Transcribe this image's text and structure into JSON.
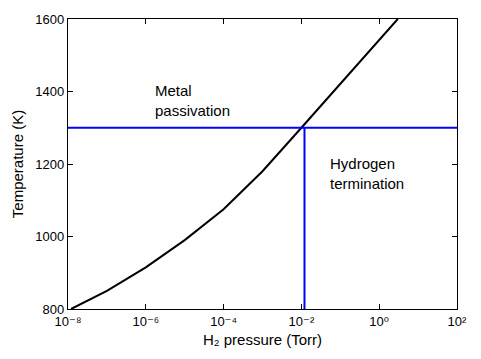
{
  "chart_data": {
    "type": "line",
    "x_label": "H₂ pressure (Torr)",
    "y_label": "Temperature (K)",
    "log": "x",
    "grid": false,
    "xlim": [
      1e-08,
      100
    ],
    "ylim": [
      800,
      1600
    ],
    "xticks": [
      {
        "value": 1e-08,
        "label": "10⁻⁸"
      },
      {
        "value": 1e-06,
        "label": "10⁻⁶"
      },
      {
        "value": 0.0001,
        "label": "10⁻⁴"
      },
      {
        "value": 0.01,
        "label": "10⁻²"
      },
      {
        "value": 1,
        "label": "10⁰"
      },
      {
        "value": 100,
        "label": "10²"
      }
    ],
    "yticks": [
      800,
      1000,
      1200,
      1400,
      1600
    ],
    "series": [
      {
        "color": "#000000",
        "line_style": "solid",
        "x": [
          1.2e-08,
          1e-07,
          1e-06,
          1e-05,
          0.0001,
          0.001,
          0.01,
          0.1,
          1,
          3
        ],
        "values": [
          800,
          850,
          915,
          990,
          1075,
          1180,
          1300,
          1420,
          1540,
          1600
        ]
      },
      {
        "color": "#0000ff",
        "line_style": "solid",
        "x": [
          1e-08,
          100
        ],
        "values": [
          1300,
          1300
        ]
      },
      {
        "color": "#0000ff",
        "line_style": "solid",
        "x": [
          0.012,
          0.012
        ],
        "values": [
          800,
          1300
        ]
      }
    ],
    "annotations": [
      {
        "text": "Metal passivation",
        "x": 1.6e-05,
        "y": 1375
      },
      {
        "text": "Hydrogen termination",
        "x": 0.5,
        "y": 1175
      }
    ]
  }
}
